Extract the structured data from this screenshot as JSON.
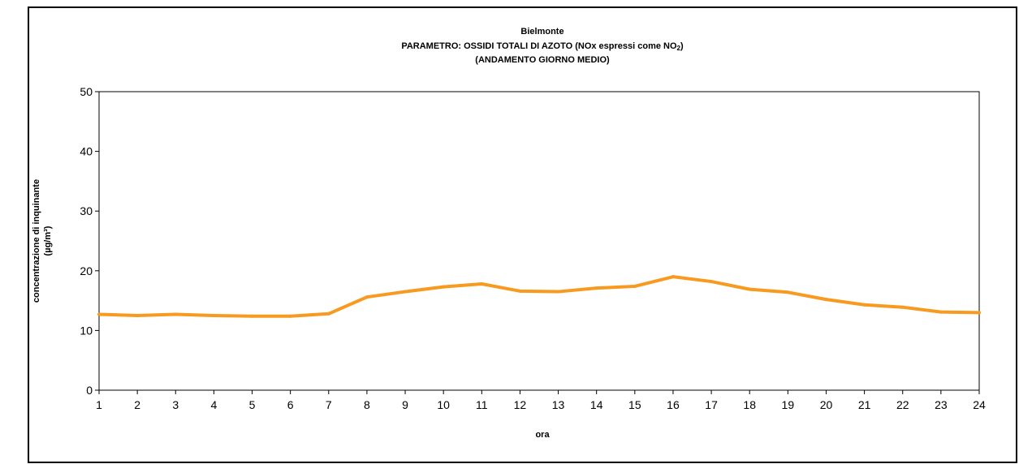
{
  "chart_data": {
    "type": "line",
    "title": "Bielmonte",
    "subtitle_line1": "PARAMETRO: OSSIDI TOTALI DI AZOTO (NOx espressi come NO",
    "subtitle_sub": "2",
    "subtitle_end": ")",
    "subtitle_line2": "(ANDAMENTO GIORNO MEDIO)",
    "xlabel": "ora",
    "ylabel_line1": "concentrazione di inquinante",
    "ylabel_line2": "(µg/m³)",
    "x": [
      1,
      2,
      3,
      4,
      5,
      6,
      7,
      8,
      9,
      10,
      11,
      12,
      13,
      14,
      15,
      16,
      17,
      18,
      19,
      20,
      21,
      22,
      23,
      24
    ],
    "x_tick_labels": [
      "1",
      "2",
      "3",
      "4",
      "5",
      "6",
      "7",
      "8",
      "9",
      "10",
      "11",
      "12",
      "13",
      "14",
      "15",
      "16",
      "17",
      "18",
      "19",
      "20",
      "21",
      "22",
      "23",
      "24"
    ],
    "y_ticks": [
      0,
      10,
      20,
      30,
      40,
      50
    ],
    "y_tick_labels": [
      "0",
      "10",
      "20",
      "30",
      "40",
      "50"
    ],
    "ylim": [
      0,
      50
    ],
    "series": [
      {
        "values": [
          12.7,
          12.5,
          12.7,
          12.5,
          12.4,
          12.4,
          12.8,
          15.6,
          16.5,
          17.3,
          17.8,
          16.6,
          16.5,
          17.1,
          17.4,
          19.0,
          18.2,
          16.9,
          16.4,
          15.2,
          14.3,
          13.9,
          13.1,
          13.0
        ],
        "color": "#f79a1f"
      }
    ],
    "grid": false,
    "legend": "none"
  }
}
